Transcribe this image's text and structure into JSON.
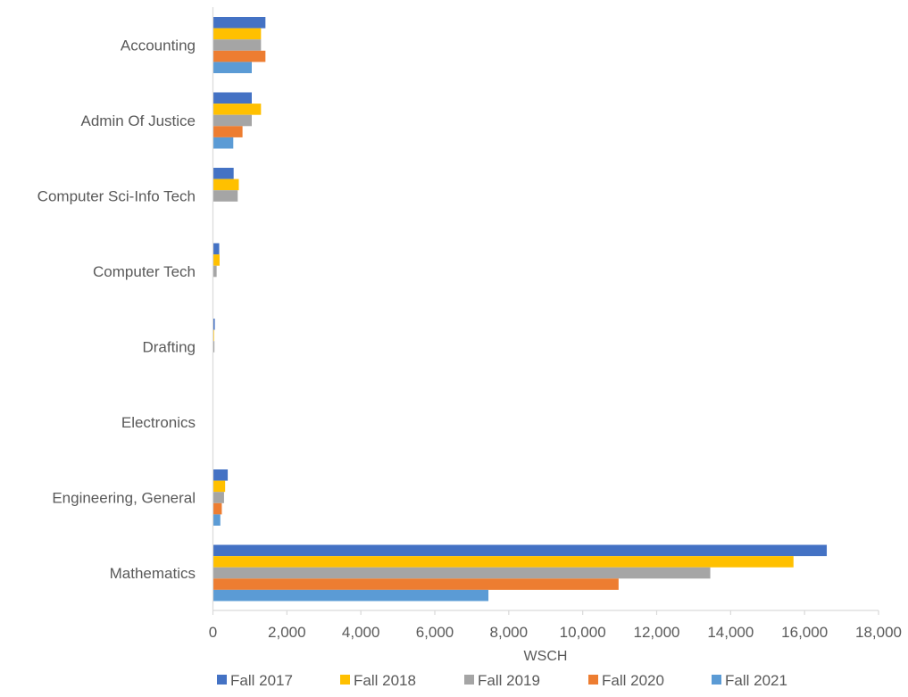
{
  "chart_data": {
    "type": "bar",
    "orientation": "horizontal",
    "categories": [
      "Accounting",
      "Admin Of Justice",
      "Computer Sci-Info Tech",
      "Computer Tech",
      "Drafting",
      "Electronics",
      "Engineering, General",
      "Mathematics"
    ],
    "series": [
      {
        "name": "Fall 2017",
        "color": "#4472C4",
        "values": [
          1420,
          1050,
          560,
          170,
          50,
          10,
          400,
          16600
        ]
      },
      {
        "name": "Fall 2018",
        "color": "#FFC000",
        "values": [
          1300,
          1300,
          700,
          180,
          30,
          0,
          330,
          15700
        ]
      },
      {
        "name": "Fall 2019",
        "color": "#A5A5A5",
        "values": [
          1300,
          1050,
          670,
          100,
          40,
          0,
          300,
          13450
        ]
      },
      {
        "name": "Fall 2020",
        "color": "#ED7D31",
        "values": [
          1420,
          800,
          0,
          0,
          0,
          0,
          240,
          10970
        ]
      },
      {
        "name": "Fall 2021",
        "color": "#5B9BD5",
        "values": [
          1050,
          550,
          0,
          0,
          0,
          0,
          200,
          7450
        ]
      }
    ],
    "xlabel": "WSCH",
    "ylabel": "",
    "title": "",
    "xlim": [
      0,
      18000
    ],
    "xticks": [
      0,
      2000,
      4000,
      6000,
      8000,
      10000,
      12000,
      14000,
      16000,
      18000
    ],
    "xtick_labels": [
      "0",
      "2,000",
      "4,000",
      "6,000",
      "8,000",
      "10,000",
      "12,000",
      "14,000",
      "16,000",
      "18,000"
    ],
    "grid": false,
    "legend": "bottom",
    "axis_color": "#D9D9D9"
  }
}
